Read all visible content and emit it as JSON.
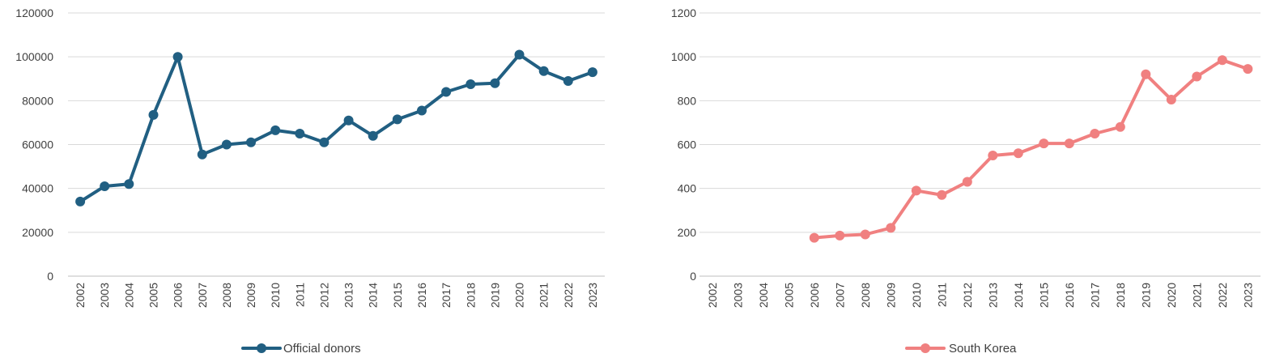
{
  "chart_data": [
    {
      "type": "line",
      "categories": [
        "2002",
        "2003",
        "2004",
        "2005",
        "2006",
        "2007",
        "2008",
        "2009",
        "2010",
        "2011",
        "2012",
        "2013",
        "2014",
        "2015",
        "2016",
        "2017",
        "2018",
        "2019",
        "2020",
        "2021",
        "2022",
        "2023"
      ],
      "series": [
        {
          "name": "Official donors",
          "color": "#215f82",
          "values": [
            34000,
            41000,
            42000,
            73500,
            100000,
            55500,
            60000,
            61000,
            66500,
            65000,
            61000,
            71000,
            64000,
            71500,
            75500,
            84000,
            87500,
            88000,
            101000,
            93500,
            89000,
            93000
          ]
        }
      ],
      "yticks": [
        "0",
        "20000",
        "40000",
        "60000",
        "80000",
        "100000",
        "120000"
      ],
      "ylim": [
        0,
        120000
      ],
      "grid": true,
      "legend_position": "bottom"
    },
    {
      "type": "line",
      "categories": [
        "2002",
        "2003",
        "2004",
        "2005",
        "2006",
        "2007",
        "2008",
        "2009",
        "2010",
        "2011",
        "2012",
        "2013",
        "2014",
        "2015",
        "2016",
        "2017",
        "2018",
        "2019",
        "2020",
        "2021",
        "2022",
        "2023"
      ],
      "series": [
        {
          "name": "South Korea",
          "color": "#f08080",
          "values": [
            null,
            null,
            null,
            null,
            175,
            185,
            190,
            220,
            390,
            370,
            430,
            550,
            560,
            605,
            605,
            650,
            680,
            920,
            805,
            910,
            985,
            945
          ]
        }
      ],
      "yticks": [
        "0",
        "200",
        "400",
        "600",
        "800",
        "1000",
        "1200"
      ],
      "ylim": [
        0,
        1200
      ],
      "grid": true,
      "legend_position": "bottom"
    }
  ]
}
